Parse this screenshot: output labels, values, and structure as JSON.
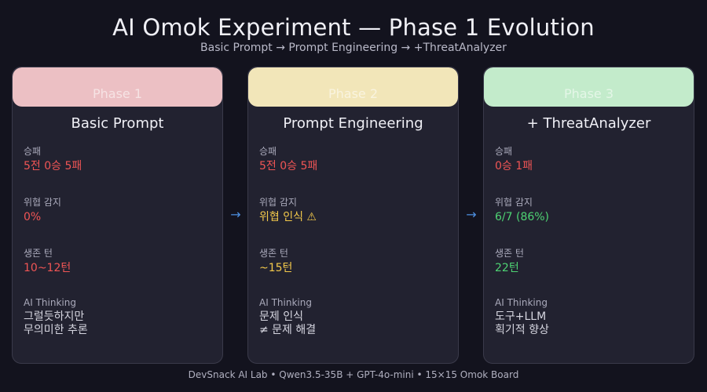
{
  "header": {
    "title": "AI Omok Experiment — Phase 1 Evolution",
    "subtitle": "Basic Prompt → Prompt Engineering → +ThreatAnalyzer"
  },
  "colors": {
    "phase1_head": "#ecc0c4",
    "phase2_head": "#f2e6b9",
    "phase3_head": "#c3ebcb",
    "negative": "#f05555",
    "warning": "#f3c94b",
    "positive": "#4ed373",
    "arrow": "#4d8fe0"
  },
  "arrows": [
    "→",
    "→"
  ],
  "cards": [
    {
      "phase": "Phase 1",
      "title": "Basic Prompt",
      "record_label": "승패",
      "record_value": "5전 0승 5패",
      "threat_label": "위협 감지",
      "threat_value": "0%",
      "survival_label": "생존 턴",
      "survival_value": "10~12턴",
      "thinking_label": "AI Thinking",
      "thinking_line1": "그럴듯하지만",
      "thinking_line2": "무의미한 추론"
    },
    {
      "phase": "Phase 2",
      "title": "Prompt Engineering",
      "record_label": "승패",
      "record_value": "5전 0승 5패",
      "threat_label": "위협 감지",
      "threat_value": "위협 인식 ⚠",
      "survival_label": "생존 턴",
      "survival_value": "~15턴",
      "thinking_label": "AI Thinking",
      "thinking_line1": "문제 인식",
      "thinking_line2": "≠ 문제 해결"
    },
    {
      "phase": "Phase 3",
      "title": "+ ThreatAnalyzer",
      "record_label": "승패",
      "record_value": "0승 1패",
      "threat_label": "위협 감지",
      "threat_value": "6/7 (86%)",
      "survival_label": "생존 턴",
      "survival_value": "22턴",
      "thinking_label": "AI Thinking",
      "thinking_line1": "도구+LLM",
      "thinking_line2": "획기적 향상"
    }
  ],
  "footer": {
    "text": "DevSnack AI Lab  •  Qwen3.5-35B + GPT-4o-mini  •  15×15 Omok Board"
  }
}
